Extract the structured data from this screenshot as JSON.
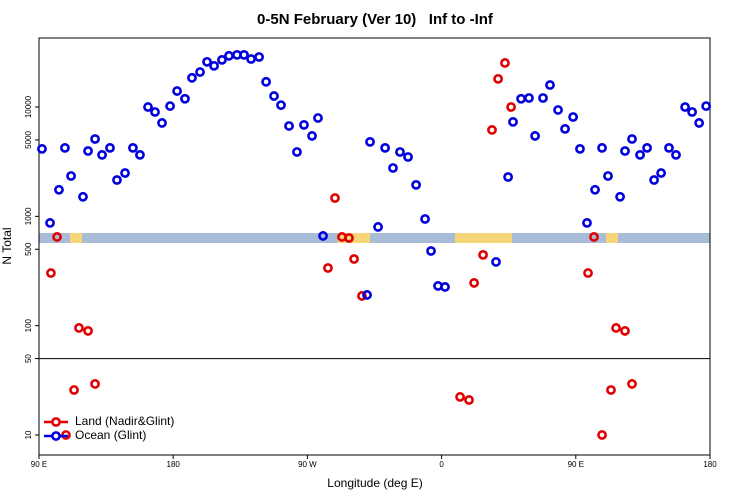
{
  "chart_data": {
    "type": "scatter",
    "title": "0-5N February (Ver 10)   Inf to -Inf",
    "x_label": "Longitude (deg E)",
    "y_label": "N Total",
    "y_scale": "log",
    "xlim": [
      90,
      540
    ],
    "ylim": [
      6.56,
      42800
    ],
    "xticks": [
      {
        "value": 90,
        "label": "90 E"
      },
      180,
      {
        "value": 270,
        "label": "90 W"
      },
      {
        "value": 360,
        "label": "0"
      },
      {
        "value": 450,
        "label": "90 E"
      },
      {
        "value": 540,
        "label": "180"
      }
    ],
    "yticks": [
      10,
      50,
      100,
      500,
      1000,
      5000,
      10000
    ],
    "hline": 50,
    "legend": "lower left",
    "series": [
      {
        "name": "Land (Nadir&Glint)",
        "color": "#e00000",
        "x": [
          98.0,
          102.1,
          108.1,
          113.5,
          116.8,
          122.9,
          127.6,
          283.8,
          288.5,
          293.2,
          297.9,
          301.3,
          306.6,
          372.4,
          378.4,
          381.8,
          387.8,
          393.8,
          397.9,
          402.5,
          406.6,
          458.2,
          462.2,
          467.6,
          473.6,
          477.0,
          483.0,
          487.7
        ],
        "values": [
          303,
          648,
          10,
          25.8,
          95.3,
          89.5,
          29.3,
          337,
          1470,
          648,
          634,
          407,
          187,
          22.3,
          20.9,
          246,
          444,
          6170,
          18100,
          25300,
          10000,
          303,
          648,
          10,
          25.8,
          95.3,
          89.5,
          29.3
        ]
      },
      {
        "name": "Ocean (Glint)",
        "color": "#0000dd",
        "x": [
          92.0,
          97.4,
          103.4,
          107.4,
          111.5,
          119.5,
          122.9,
          127.6,
          132.3,
          137.6,
          142.3,
          147.7,
          153.0,
          157.7,
          163.1,
          167.8,
          172.5,
          177.9,
          182.6,
          187.9,
          192.6,
          198.0,
          202.7,
          207.4,
          212.7,
          217.4,
          222.8,
          227.5,
          232.2,
          237.6,
          242.3,
          247.6,
          252.3,
          257.7,
          263.0,
          267.7,
          273.1,
          277.1,
          280.5,
          310.0,
          312.0,
          317.4,
          322.1,
          327.4,
          332.1,
          337.5,
          342.9,
          348.9,
          352.9,
          357.6,
          362.3,
          396.5,
          404.6,
          407.9,
          413.3,
          418.6,
          422.7,
          428.0,
          432.7,
          438.1,
          442.8,
          448.2,
          452.8,
          457.5,
          462.9,
          467.6,
          471.6,
          479.7,
          483.0,
          487.7,
          493.1,
          497.8,
          502.5,
          507.2,
          512.5,
          517.2,
          523.3,
          528.0,
          532.7,
          537.4
        ],
        "values": [
          4140,
          871,
          1750,
          4230,
          2340,
          1510,
          3960,
          5100,
          3650,
          4230,
          2150,
          2490,
          4230,
          3650,
          10000,
          9010,
          7150,
          10200,
          14000,
          11900,
          18500,
          20900,
          25900,
          23800,
          27000,
          29400,
          30000,
          30000,
          27500,
          28700,
          17000,
          12600,
          10400,
          6710,
          3880,
          6860,
          5440,
          7940,
          662,
          191,
          4800,
          800,
          4230,
          2770,
          3880,
          3490,
          1940,
          946,
          482,
          231,
          226,
          383,
          2290,
          7310,
          11900,
          12100,
          5440,
          12100,
          15900,
          9400,
          6310,
          8110,
          4140,
          871,
          1750,
          4230,
          2340,
          1510,
          3960,
          5100,
          3650,
          4230,
          2150,
          2490,
          4230,
          3650,
          10000,
          9010,
          7150,
          10200
        ]
      }
    ]
  }
}
